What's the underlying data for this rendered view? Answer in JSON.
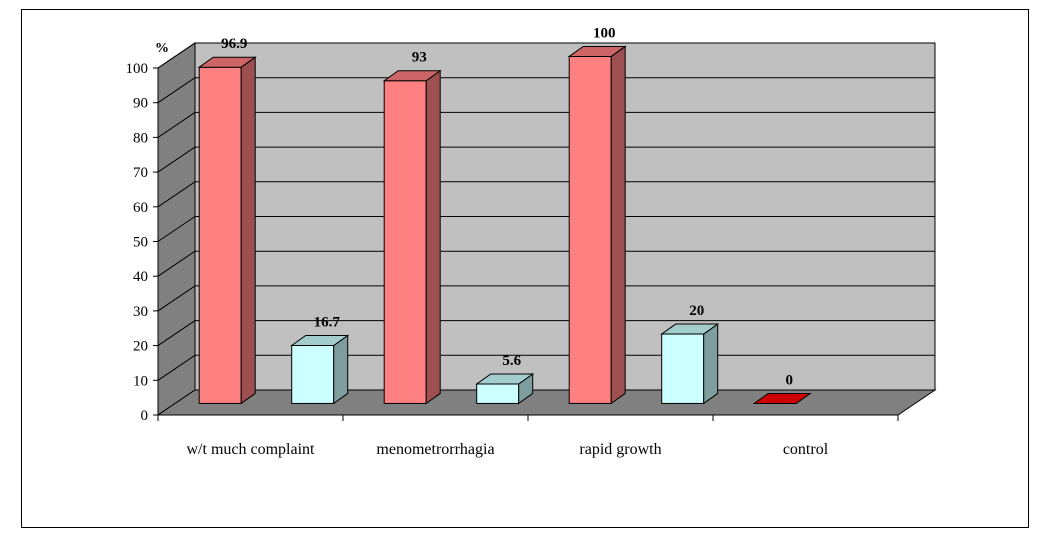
{
  "chart_data": {
    "type": "bar",
    "style": "3d-column",
    "unit_label": "%",
    "ylim": [
      0,
      100
    ],
    "ytick_step": 10,
    "grid": true,
    "categories": [
      "w/t much complaint",
      "menometrorrhagia",
      "rapid growth",
      "control"
    ],
    "bars": [
      {
        "category_index": 0,
        "slot": 0,
        "value": 96.9,
        "label": "96.9",
        "color": "#ff8080"
      },
      {
        "category_index": 0,
        "slot": 1,
        "value": 16.7,
        "label": "16.7",
        "color": "#ccffff"
      },
      {
        "category_index": 1,
        "slot": 0,
        "value": 93,
        "label": "93",
        "color": "#ff8080"
      },
      {
        "category_index": 1,
        "slot": 1,
        "value": 5.6,
        "label": "5.6",
        "color": "#ccffff"
      },
      {
        "category_index": 2,
        "slot": 0,
        "value": 100,
        "label": "100",
        "color": "#ff8080"
      },
      {
        "category_index": 2,
        "slot": 1,
        "value": 20,
        "label": "20",
        "color": "#ccffff"
      },
      {
        "category_index": 3,
        "slot": 0,
        "value": 0,
        "label": "0",
        "color": "#cc0000"
      }
    ],
    "colors": {
      "back_wall": "#c0c0c0",
      "side_wall": "#808080",
      "floor": "#808080"
    }
  }
}
